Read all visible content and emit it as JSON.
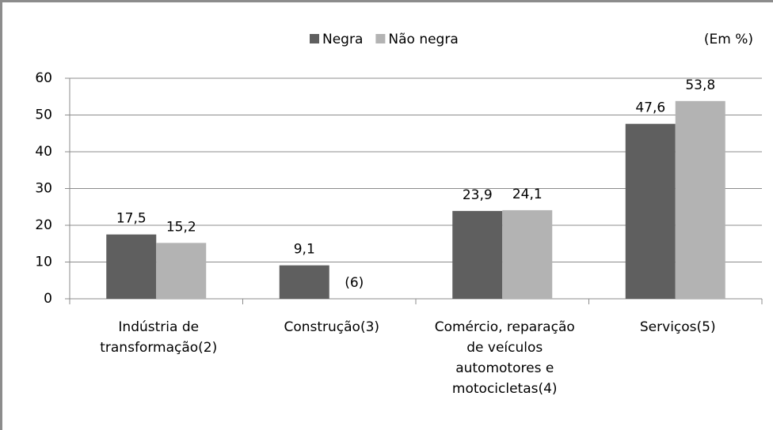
{
  "chart_data": {
    "type": "bar",
    "unit_note": "(Em %)",
    "categories": [
      "Indústria de transformação(2)",
      "Construção(3)",
      "Comércio, reparação de veículos automotores e motocicletas(4)",
      "Serviços(5)"
    ],
    "series": [
      {
        "name": "Negra",
        "color": "#5f5f5f",
        "values": [
          17.5,
          9.1,
          23.9,
          47.6
        ],
        "value_labels": [
          "17,5",
          "9,1",
          "23,9",
          "47,6"
        ]
      },
      {
        "name": "Não negra",
        "color": "#b3b3b3",
        "values": [
          15.2,
          null,
          24.1,
          53.8
        ],
        "value_labels": [
          "15,2",
          null,
          "24,1",
          "53,8"
        ]
      }
    ],
    "annotation": "(6)",
    "ylim": [
      0,
      60
    ],
    "yticks": [
      0,
      10,
      20,
      30,
      40,
      50,
      60
    ],
    "grid": true
  }
}
